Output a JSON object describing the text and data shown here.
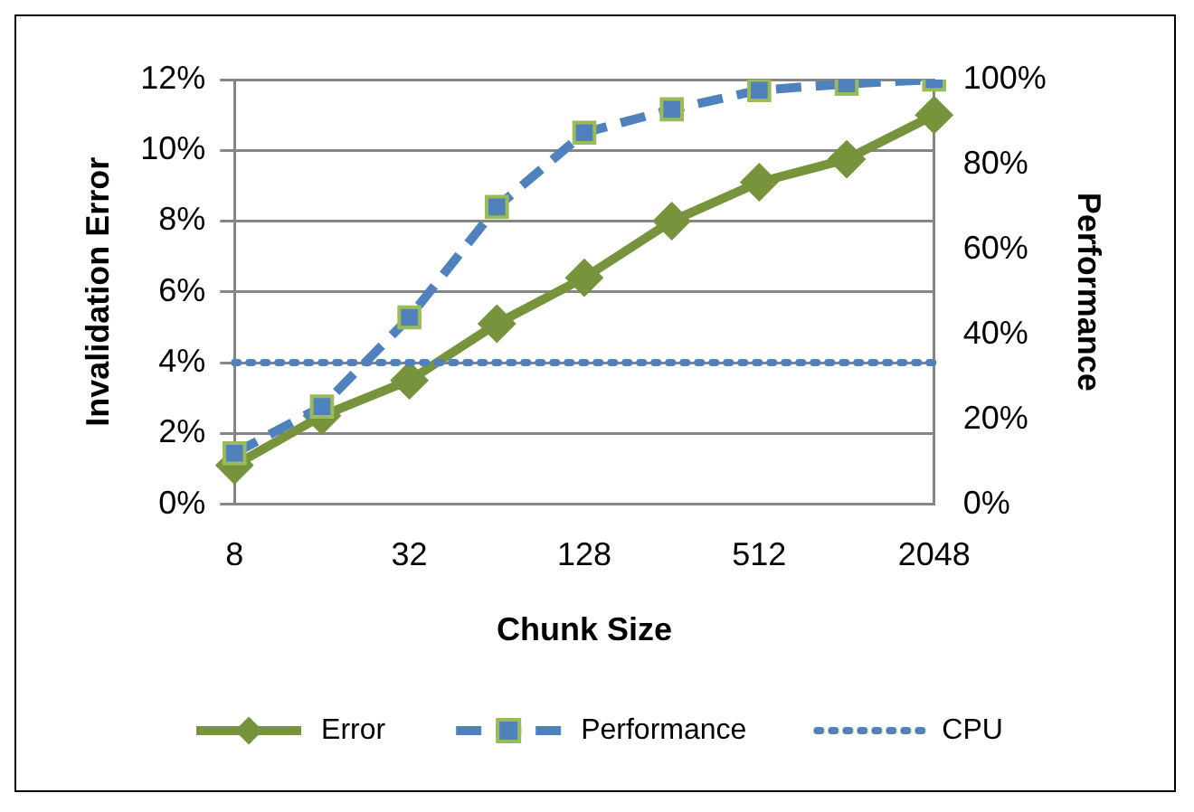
{
  "chart_data": {
    "type": "line",
    "xlabel": "Chunk Size",
    "ylabel": "Invalidation Error",
    "y2label": "Performance",
    "categories": [
      "8",
      null,
      "32",
      null,
      "128",
      null,
      "512",
      null,
      "2048"
    ],
    "series": [
      {
        "name": "Error",
        "color": "#77933c",
        "marker": "diamond",
        "line_style": "solid",
        "values": [
          1.1,
          2.5,
          3.5,
          5.1,
          6.4,
          8.0,
          9.1,
          9.75,
          11.0
        ]
      },
      {
        "name": "Performance",
        "color": "#4f81bd",
        "marker": "square",
        "line_style": "dashed",
        "axis": "y2",
        "values": [
          12,
          23,
          44,
          70,
          87.5,
          93,
          97.5,
          99,
          100
        ]
      },
      {
        "name": "CPU",
        "color": "#4f81bd",
        "marker": "none",
        "line_style": "dotted",
        "values": [
          4,
          4,
          4,
          4,
          4,
          4,
          4,
          4,
          4
        ]
      }
    ],
    "ylim": [
      0,
      12
    ],
    "yticks": [
      {
        "value": 0,
        "label": "0%"
      },
      {
        "value": 2,
        "label": "2%"
      },
      {
        "value": 4,
        "label": "4%"
      },
      {
        "value": 6,
        "label": "6%"
      },
      {
        "value": 8,
        "label": "8%"
      },
      {
        "value": 10,
        "label": "10%"
      },
      {
        "value": 12,
        "label": "12%"
      }
    ],
    "y2lim": [
      0,
      100
    ],
    "y2ticks": [
      {
        "value": 0,
        "label": "0%"
      },
      {
        "value": 20,
        "label": "20%"
      },
      {
        "value": 40,
        "label": "40%"
      },
      {
        "value": 60,
        "label": "60%"
      },
      {
        "value": 80,
        "label": "80%"
      },
      {
        "value": 100,
        "label": "100%"
      }
    ],
    "grid": "y",
    "legend": "bottom"
  }
}
